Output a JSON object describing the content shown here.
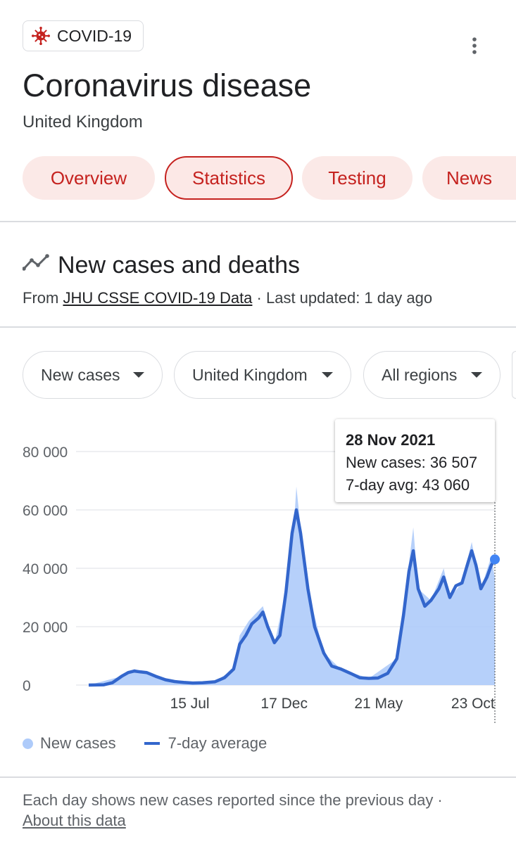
{
  "header": {
    "badge_label": "COVID-19",
    "title": "Coronavirus disease",
    "subtitle": "United Kingdom"
  },
  "tabs": [
    {
      "label": "Overview"
    },
    {
      "label": "Statistics"
    },
    {
      "label": "Testing"
    },
    {
      "label": "News"
    }
  ],
  "section": {
    "title": "New cases and deaths",
    "source_prefix": "From ",
    "source_link": "JHU CSSE COVID-19 Data",
    "source_suffix": " · Last updated: 1 day ago"
  },
  "filters": [
    {
      "label": "New cases"
    },
    {
      "label": "United Kingdom"
    },
    {
      "label": "All regions"
    }
  ],
  "tooltip": {
    "date": "28 Nov 2021",
    "new_cases": "New cases: 36 507",
    "avg": "7-day avg: 43 060"
  },
  "legend": {
    "new_cases": "New cases",
    "avg": "7-day average"
  },
  "footer": {
    "note": "Each day shows new cases reported since the previous day  ·",
    "about": "About this data"
  },
  "colors": {
    "accent": "#c5221f",
    "area": "#aecbfa",
    "line": "#3366cc"
  },
  "chart_data": {
    "type": "area",
    "ylim": [
      0,
      80000
    ],
    "yticks": [
      0,
      20000,
      40000,
      60000,
      80000
    ],
    "ytick_labels": [
      "0",
      "20 000",
      "40 000",
      "60 000",
      "80 000"
    ],
    "xtick_labels": [
      {
        "label": "15 Jul",
        "date": "2020-07-15"
      },
      {
        "label": "17 Dec",
        "date": "2020-12-17"
      },
      {
        "label": "21 May",
        "date": "2021-05-21"
      },
      {
        "label": "23 Oct",
        "date": "2021-10-23"
      }
    ],
    "x_start": "2020-01-31",
    "x_end": "2021-11-28",
    "series": [
      {
        "name": "7-day average",
        "points": [
          [
            "2020-01-31",
            0
          ],
          [
            "2020-02-25",
            100
          ],
          [
            "2020-03-10",
            800
          ],
          [
            "2020-03-25",
            3000
          ],
          [
            "2020-04-05",
            4300
          ],
          [
            "2020-04-15",
            4800
          ],
          [
            "2020-04-25",
            4500
          ],
          [
            "2020-05-05",
            4300
          ],
          [
            "2020-05-20",
            3000
          ],
          [
            "2020-06-05",
            1800
          ],
          [
            "2020-06-20",
            1200
          ],
          [
            "2020-07-05",
            900
          ],
          [
            "2020-07-20",
            700
          ],
          [
            "2020-08-05",
            800
          ],
          [
            "2020-08-25",
            1100
          ],
          [
            "2020-09-10",
            2500
          ],
          [
            "2020-09-25",
            5500
          ],
          [
            "2020-10-05",
            14000
          ],
          [
            "2020-10-15",
            17000
          ],
          [
            "2020-10-25",
            21000
          ],
          [
            "2020-11-05",
            23000
          ],
          [
            "2020-11-12",
            25000
          ],
          [
            "2020-11-20",
            20000
          ],
          [
            "2020-12-01",
            14500
          ],
          [
            "2020-12-10",
            17000
          ],
          [
            "2020-12-20",
            32000
          ],
          [
            "2020-12-30",
            52000
          ],
          [
            "2021-01-06",
            60000
          ],
          [
            "2021-01-13",
            52000
          ],
          [
            "2021-01-25",
            33000
          ],
          [
            "2021-02-05",
            20000
          ],
          [
            "2021-02-20",
            11000
          ],
          [
            "2021-03-05",
            6500
          ],
          [
            "2021-03-20",
            5500
          ],
          [
            "2021-04-05",
            4000
          ],
          [
            "2021-04-20",
            2500
          ],
          [
            "2021-05-05",
            2300
          ],
          [
            "2021-05-20",
            2400
          ],
          [
            "2021-06-05",
            4000
          ],
          [
            "2021-06-20",
            9000
          ],
          [
            "2021-07-01",
            24000
          ],
          [
            "2021-07-10",
            39000
          ],
          [
            "2021-07-17",
            46000
          ],
          [
            "2021-07-25",
            33000
          ],
          [
            "2021-08-05",
            27000
          ],
          [
            "2021-08-15",
            29000
          ],
          [
            "2021-08-28",
            33000
          ],
          [
            "2021-09-05",
            37000
          ],
          [
            "2021-09-15",
            30000
          ],
          [
            "2021-09-25",
            34000
          ],
          [
            "2021-10-05",
            35000
          ],
          [
            "2021-10-15",
            42000
          ],
          [
            "2021-10-21",
            46000
          ],
          [
            "2021-10-28",
            41000
          ],
          [
            "2021-11-05",
            33000
          ],
          [
            "2021-11-15",
            37000
          ],
          [
            "2021-11-22",
            41000
          ],
          [
            "2021-11-28",
            43060
          ]
        ]
      },
      {
        "name": "New cases",
        "points": [
          [
            "2020-01-31",
            0
          ],
          [
            "2020-03-25",
            3000
          ],
          [
            "2020-04-15",
            5500
          ],
          [
            "2020-05-20",
            3000
          ],
          [
            "2020-06-20",
            1200
          ],
          [
            "2020-07-20",
            700
          ],
          [
            "2020-08-25",
            1100
          ],
          [
            "2020-09-25",
            5500
          ],
          [
            "2020-10-05",
            17000
          ],
          [
            "2020-10-20",
            22000
          ],
          [
            "2020-11-12",
            27000
          ],
          [
            "2020-12-01",
            14000
          ],
          [
            "2020-12-20",
            33000
          ],
          [
            "2021-01-03",
            58000
          ],
          [
            "2021-01-06",
            68000
          ],
          [
            "2021-01-13",
            54000
          ],
          [
            "2021-01-25",
            33000
          ],
          [
            "2021-02-20",
            11000
          ],
          [
            "2021-03-20",
            5500
          ],
          [
            "2021-05-05",
            2300
          ],
          [
            "2021-06-20",
            9000
          ],
          [
            "2021-07-10",
            42000
          ],
          [
            "2021-07-17",
            54000
          ],
          [
            "2021-07-25",
            33000
          ],
          [
            "2021-08-15",
            29000
          ],
          [
            "2021-09-05",
            40000
          ],
          [
            "2021-09-15",
            30000
          ],
          [
            "2021-10-05",
            35000
          ],
          [
            "2021-10-21",
            49000
          ],
          [
            "2021-11-05",
            33000
          ],
          [
            "2021-11-22",
            44000
          ],
          [
            "2021-11-28",
            36507
          ]
        ]
      }
    ],
    "highlight": {
      "date": "2021-11-28",
      "new_cases": 36507,
      "avg": 43060
    },
    "legend_position": "bottom",
    "grid": true
  }
}
